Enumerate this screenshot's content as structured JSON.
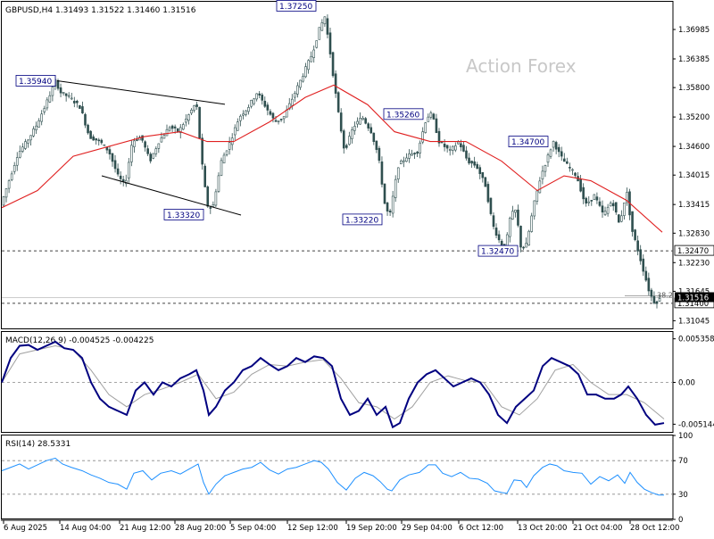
{
  "chart_data": [
    {
      "type": "candlestick",
      "title": "GBPUSD,H4  1.31493 1.31522 1.31460 1.31516",
      "watermark": "Action Forex",
      "ylim": [
        1.3087,
        1.3755
      ],
      "y_ticks": [
        "1.36985",
        "1.36385",
        "1.35800",
        "1.35200",
        "1.34600",
        "1.34015",
        "1.33415",
        "1.32830",
        "1.32230",
        "1.31645",
        "1.31045"
      ],
      "x_ticks": [
        "6 Aug 2025",
        "14 Aug 04:00",
        "21 Aug 12:00",
        "28 Aug 20:00",
        "5 Sep 04:00",
        "12 Sep 12:00",
        "19 Sep 20:00",
        "29 Sep 04:00",
        "6 Oct 12:00",
        "13 Oct 20:00",
        "21 Oct 04:00",
        "28 Oct 12:00"
      ],
      "price_path": [
        [
          0,
          1.3335
        ],
        [
          10,
          1.339
        ],
        [
          20,
          1.3445
        ],
        [
          30,
          1.347
        ],
        [
          40,
          1.35
        ],
        [
          50,
          1.354
        ],
        [
          58,
          1.3575
        ],
        [
          62,
          1.3594
        ],
        [
          68,
          1.357
        ],
        [
          78,
          1.356
        ],
        [
          90,
          1.354
        ],
        [
          100,
          1.348
        ],
        [
          112,
          1.347
        ],
        [
          122,
          1.345
        ],
        [
          132,
          1.34
        ],
        [
          140,
          1.338
        ],
        [
          148,
          1.347
        ],
        [
          158,
          1.348
        ],
        [
          168,
          1.343
        ],
        [
          178,
          1.347
        ],
        [
          190,
          1.35
        ],
        [
          200,
          1.349
        ],
        [
          210,
          1.352
        ],
        [
          220,
          1.355
        ],
        [
          226,
          1.343
        ],
        [
          232,
          1.334
        ],
        [
          238,
          1.3332
        ],
        [
          248,
          1.343
        ],
        [
          258,
          1.347
        ],
        [
          268,
          1.352
        ],
        [
          278,
          1.354
        ],
        [
          288,
          1.357
        ],
        [
          298,
          1.354
        ],
        [
          308,
          1.351
        ],
        [
          318,
          1.352
        ],
        [
          328,
          1.356
        ],
        [
          338,
          1.36
        ],
        [
          350,
          1.365
        ],
        [
          358,
          1.37
        ],
        [
          364,
          1.3725
        ],
        [
          370,
          1.365
        ],
        [
          378,
          1.354
        ],
        [
          386,
          1.345
        ],
        [
          396,
          1.35
        ],
        [
          406,
          1.352
        ],
        [
          416,
          1.349
        ],
        [
          424,
          1.344
        ],
        [
          432,
          1.333
        ],
        [
          437,
          1.3322
        ],
        [
          446,
          1.342
        ],
        [
          456,
          1.344
        ],
        [
          468,
          1.345
        ],
        [
          478,
          1.352
        ],
        [
          484,
          1.3526
        ],
        [
          492,
          1.347
        ],
        [
          504,
          1.345
        ],
        [
          514,
          1.347
        ],
        [
          524,
          1.343
        ],
        [
          534,
          1.342
        ],
        [
          544,
          1.338
        ],
        [
          552,
          1.33
        ],
        [
          560,
          1.3265
        ],
        [
          566,
          1.325
        ],
        [
          572,
          1.332
        ],
        [
          578,
          1.333
        ],
        [
          584,
          1.325
        ],
        [
          590,
          1.326
        ],
        [
          598,
          1.334
        ],
        [
          606,
          1.34
        ],
        [
          614,
          1.344
        ],
        [
          620,
          1.347
        ],
        [
          628,
          1.344
        ],
        [
          636,
          1.342
        ],
        [
          646,
          1.34
        ],
        [
          656,
          1.334
        ],
        [
          666,
          1.336
        ],
        [
          676,
          1.332
        ],
        [
          686,
          1.335
        ],
        [
          694,
          1.33
        ],
        [
          702,
          1.337
        ],
        [
          708,
          1.329
        ],
        [
          716,
          1.324
        ],
        [
          722,
          1.32
        ],
        [
          728,
          1.316
        ],
        [
          734,
          1.314
        ],
        [
          740,
          1.315
        ]
      ],
      "moving_average": [
        [
          0,
          1.3335
        ],
        [
          40,
          1.337
        ],
        [
          80,
          1.344
        ],
        [
          120,
          1.346
        ],
        [
          160,
          1.348
        ],
        [
          200,
          1.349
        ],
        [
          230,
          1.347
        ],
        [
          260,
          1.347
        ],
        [
          300,
          1.351
        ],
        [
          340,
          1.356
        ],
        [
          372,
          1.3585
        ],
        [
          410,
          1.3545
        ],
        [
          440,
          1.349
        ],
        [
          480,
          1.347
        ],
        [
          520,
          1.347
        ],
        [
          560,
          1.343
        ],
        [
          600,
          1.337
        ],
        [
          630,
          1.34
        ],
        [
          660,
          1.339
        ],
        [
          700,
          1.335
        ],
        [
          740,
          1.3285
        ]
      ],
      "price_labels": [
        {
          "text": "1.37250",
          "value": 1.3725
        },
        {
          "text": "1.35940",
          "value": 1.3594
        },
        {
          "text": "1.35260",
          "value": 1.3526
        },
        {
          "text": "1.34700",
          "value": 1.347
        },
        {
          "text": "1.33320",
          "value": 1.3332
        },
        {
          "text": "1.33220",
          "value": 1.3322
        },
        {
          "text": "1.32470",
          "value": 1.3247
        }
      ],
      "horizontal_levels": [
        {
          "label": "1.32470",
          "value": 1.3247
        },
        {
          "label": "1.31400",
          "value": 1.314
        },
        {
          "label": "38.2",
          "value": 1.3155
        }
      ],
      "current_price_label": "1.31516",
      "current_price": 1.31516,
      "channel_upper": [
        [
          62,
          1.3594
        ],
        [
          250,
          1.3546
        ]
      ],
      "channel_lower": [
        [
          112,
          1.34
        ],
        [
          268,
          1.332
        ]
      ]
    },
    {
      "type": "line",
      "title": "MACD(12,26,9) -0.004525 -0.004225",
      "ylim": [
        -0.0062,
        0.0062
      ],
      "y_ticks": [
        "0.005358",
        "0.00",
        "-0.005144"
      ],
      "zero_level": 0.0,
      "macd": [
        [
          0,
          0.0
        ],
        [
          10,
          0.003
        ],
        [
          20,
          0.0045
        ],
        [
          30,
          0.0046
        ],
        [
          40,
          0.004
        ],
        [
          50,
          0.0045
        ],
        [
          60,
          0.005
        ],
        [
          70,
          0.0042
        ],
        [
          80,
          0.004
        ],
        [
          90,
          0.003
        ],
        [
          100,
          0.0
        ],
        [
          110,
          -0.002
        ],
        [
          120,
          -0.003
        ],
        [
          130,
          -0.0035
        ],
        [
          140,
          -0.004
        ],
        [
          150,
          -0.001
        ],
        [
          160,
          0.0
        ],
        [
          170,
          -0.0015
        ],
        [
          180,
          0.0
        ],
        [
          190,
          -0.0005
        ],
        [
          200,
          0.0005
        ],
        [
          210,
          0.001
        ],
        [
          218,
          0.0015
        ],
        [
          226,
          -0.001
        ],
        [
          232,
          -0.004
        ],
        [
          240,
          -0.003
        ],
        [
          250,
          -0.001
        ],
        [
          260,
          0.0
        ],
        [
          270,
          0.0015
        ],
        [
          280,
          0.002
        ],
        [
          290,
          0.003
        ],
        [
          300,
          0.0022
        ],
        [
          310,
          0.0015
        ],
        [
          320,
          0.002
        ],
        [
          330,
          0.003
        ],
        [
          340,
          0.0025
        ],
        [
          350,
          0.0032
        ],
        [
          360,
          0.003
        ],
        [
          370,
          0.002
        ],
        [
          380,
          -0.002
        ],
        [
          390,
          -0.004
        ],
        [
          400,
          -0.0035
        ],
        [
          410,
          -0.002
        ],
        [
          420,
          -0.004
        ],
        [
          430,
          -0.003
        ],
        [
          438,
          -0.0055
        ],
        [
          446,
          -0.005
        ],
        [
          456,
          -0.002
        ],
        [
          466,
          0.0
        ],
        [
          476,
          0.001
        ],
        [
          486,
          0.0015
        ],
        [
          496,
          0.0005
        ],
        [
          506,
          -0.0005
        ],
        [
          516,
          0.0
        ],
        [
          526,
          0.0005
        ],
        [
          536,
          0.0
        ],
        [
          546,
          -0.0015
        ],
        [
          556,
          -0.004
        ],
        [
          566,
          -0.005
        ],
        [
          576,
          -0.003
        ],
        [
          586,
          -0.002
        ],
        [
          596,
          -0.001
        ],
        [
          606,
          0.002
        ],
        [
          616,
          0.003
        ],
        [
          626,
          0.0025
        ],
        [
          636,
          0.002
        ],
        [
          646,
          0.001
        ],
        [
          656,
          -0.0015
        ],
        [
          666,
          -0.0015
        ],
        [
          676,
          -0.002
        ],
        [
          686,
          -0.002
        ],
        [
          694,
          -0.0015
        ],
        [
          702,
          -0.0005
        ],
        [
          712,
          -0.002
        ],
        [
          722,
          -0.004
        ],
        [
          732,
          -0.0052
        ],
        [
          742,
          -0.005
        ]
      ],
      "signal": [
        [
          0,
          0.0
        ],
        [
          20,
          0.0035
        ],
        [
          40,
          0.004
        ],
        [
          60,
          0.0045
        ],
        [
          80,
          0.004
        ],
        [
          100,
          0.0015
        ],
        [
          120,
          -0.0015
        ],
        [
          140,
          -0.003
        ],
        [
          160,
          -0.0015
        ],
        [
          180,
          -0.0008
        ],
        [
          200,
          0.0
        ],
        [
          220,
          0.001
        ],
        [
          240,
          -0.002
        ],
        [
          260,
          -0.0012
        ],
        [
          280,
          0.001
        ],
        [
          300,
          0.0022
        ],
        [
          320,
          0.002
        ],
        [
          340,
          0.0025
        ],
        [
          360,
          0.0028
        ],
        [
          380,
          0.0005
        ],
        [
          400,
          -0.0025
        ],
        [
          420,
          -0.003
        ],
        [
          440,
          -0.0045
        ],
        [
          460,
          -0.003
        ],
        [
          480,
          0.0
        ],
        [
          500,
          0.0008
        ],
        [
          520,
          0.0002
        ],
        [
          540,
          0.0
        ],
        [
          560,
          -0.003
        ],
        [
          580,
          -0.004
        ],
        [
          600,
          -0.002
        ],
        [
          620,
          0.0015
        ],
        [
          640,
          0.0022
        ],
        [
          660,
          0.0
        ],
        [
          680,
          -0.0015
        ],
        [
          700,
          -0.0015
        ],
        [
          720,
          -0.0025
        ],
        [
          742,
          -0.0045
        ]
      ]
    },
    {
      "type": "line",
      "title": "RSI(14) 28.5331",
      "ylim": [
        0,
        100
      ],
      "y_ticks": [
        "100",
        "70",
        "30",
        "0"
      ],
      "levels": [
        70,
        30
      ],
      "rsi": [
        [
          0,
          58
        ],
        [
          10,
          62
        ],
        [
          20,
          66
        ],
        [
          30,
          60
        ],
        [
          40,
          65
        ],
        [
          50,
          70
        ],
        [
          60,
          73
        ],
        [
          68,
          66
        ],
        [
          78,
          62
        ],
        [
          90,
          58
        ],
        [
          100,
          53
        ],
        [
          110,
          49
        ],
        [
          120,
          44
        ],
        [
          130,
          42
        ],
        [
          140,
          36
        ],
        [
          148,
          55
        ],
        [
          158,
          58
        ],
        [
          168,
          47
        ],
        [
          178,
          55
        ],
        [
          190,
          58
        ],
        [
          200,
          54
        ],
        [
          210,
          60
        ],
        [
          220,
          66
        ],
        [
          226,
          44
        ],
        [
          232,
          30
        ],
        [
          240,
          42
        ],
        [
          250,
          52
        ],
        [
          260,
          56
        ],
        [
          270,
          60
        ],
        [
          280,
          62
        ],
        [
          290,
          68
        ],
        [
          300,
          59
        ],
        [
          310,
          54
        ],
        [
          320,
          60
        ],
        [
          330,
          62
        ],
        [
          340,
          66
        ],
        [
          350,
          70
        ],
        [
          358,
          68
        ],
        [
          366,
          60
        ],
        [
          376,
          44
        ],
        [
          386,
          35
        ],
        [
          396,
          49
        ],
        [
          406,
          56
        ],
        [
          416,
          52
        ],
        [
          424,
          45
        ],
        [
          432,
          36
        ],
        [
          437,
          34
        ],
        [
          446,
          47
        ],
        [
          456,
          53
        ],
        [
          468,
          56
        ],
        [
          478,
          65
        ],
        [
          486,
          65
        ],
        [
          494,
          55
        ],
        [
          504,
          51
        ],
        [
          514,
          56
        ],
        [
          524,
          49
        ],
        [
          534,
          48
        ],
        [
          544,
          43
        ],
        [
          552,
          34
        ],
        [
          560,
          32
        ],
        [
          566,
          31
        ],
        [
          574,
          47
        ],
        [
          582,
          46
        ],
        [
          588,
          38
        ],
        [
          596,
          52
        ],
        [
          606,
          62
        ],
        [
          614,
          66
        ],
        [
          622,
          64
        ],
        [
          630,
          58
        ],
        [
          640,
          56
        ],
        [
          650,
          55
        ],
        [
          660,
          42
        ],
        [
          670,
          51
        ],
        [
          680,
          46
        ],
        [
          690,
          53
        ],
        [
          698,
          43
        ],
        [
          704,
          56
        ],
        [
          712,
          44
        ],
        [
          720,
          36
        ],
        [
          728,
          32
        ],
        [
          736,
          29
        ],
        [
          742,
          29
        ]
      ]
    }
  ]
}
